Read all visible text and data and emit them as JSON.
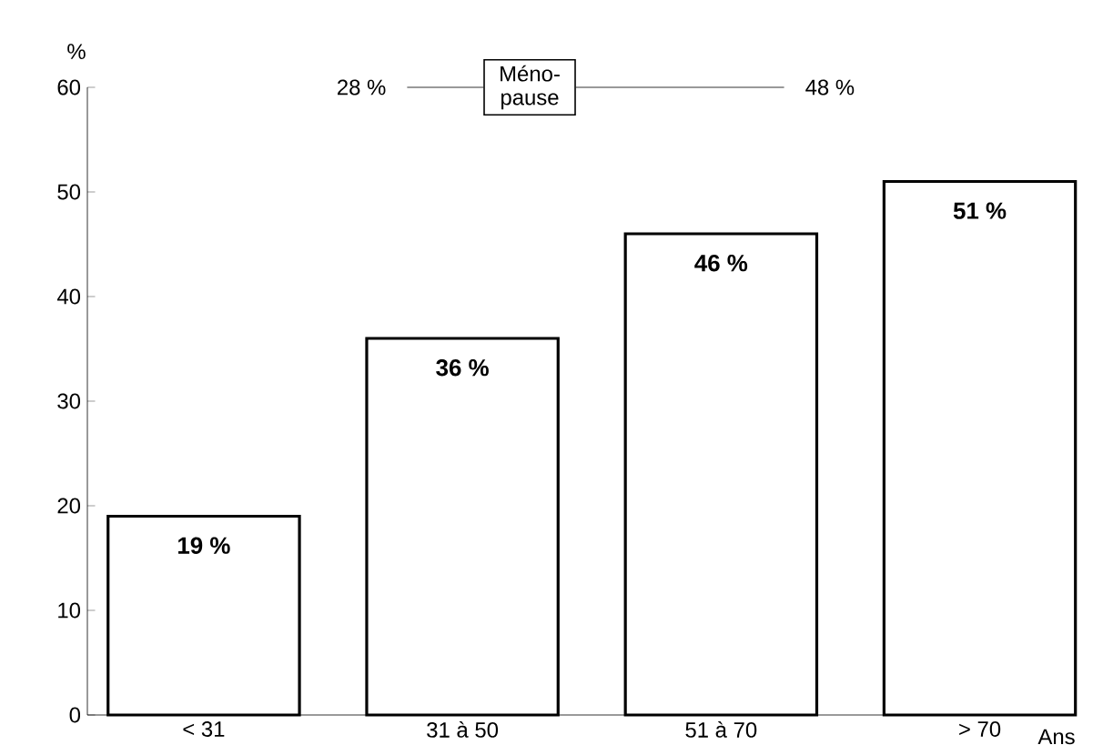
{
  "chart_data": {
    "type": "bar",
    "categories": [
      "< 31",
      "31 à 50",
      "51 à 70",
      "> 70"
    ],
    "values": [
      19,
      36,
      46,
      51
    ],
    "color": "#ffffff",
    "data_labels": true,
    "value_labels": [
      "19 %",
      "36 %",
      "46 %",
      "51 %"
    ],
    "ylim": [
      0,
      60
    ],
    "yticks": [
      0,
      10,
      20,
      30,
      40,
      50,
      60
    ],
    "ylabel": "%",
    "xlabel": "Ans",
    "annotations": [
      "28 %",
      "Méno-pause",
      "48 %"
    ]
  }
}
